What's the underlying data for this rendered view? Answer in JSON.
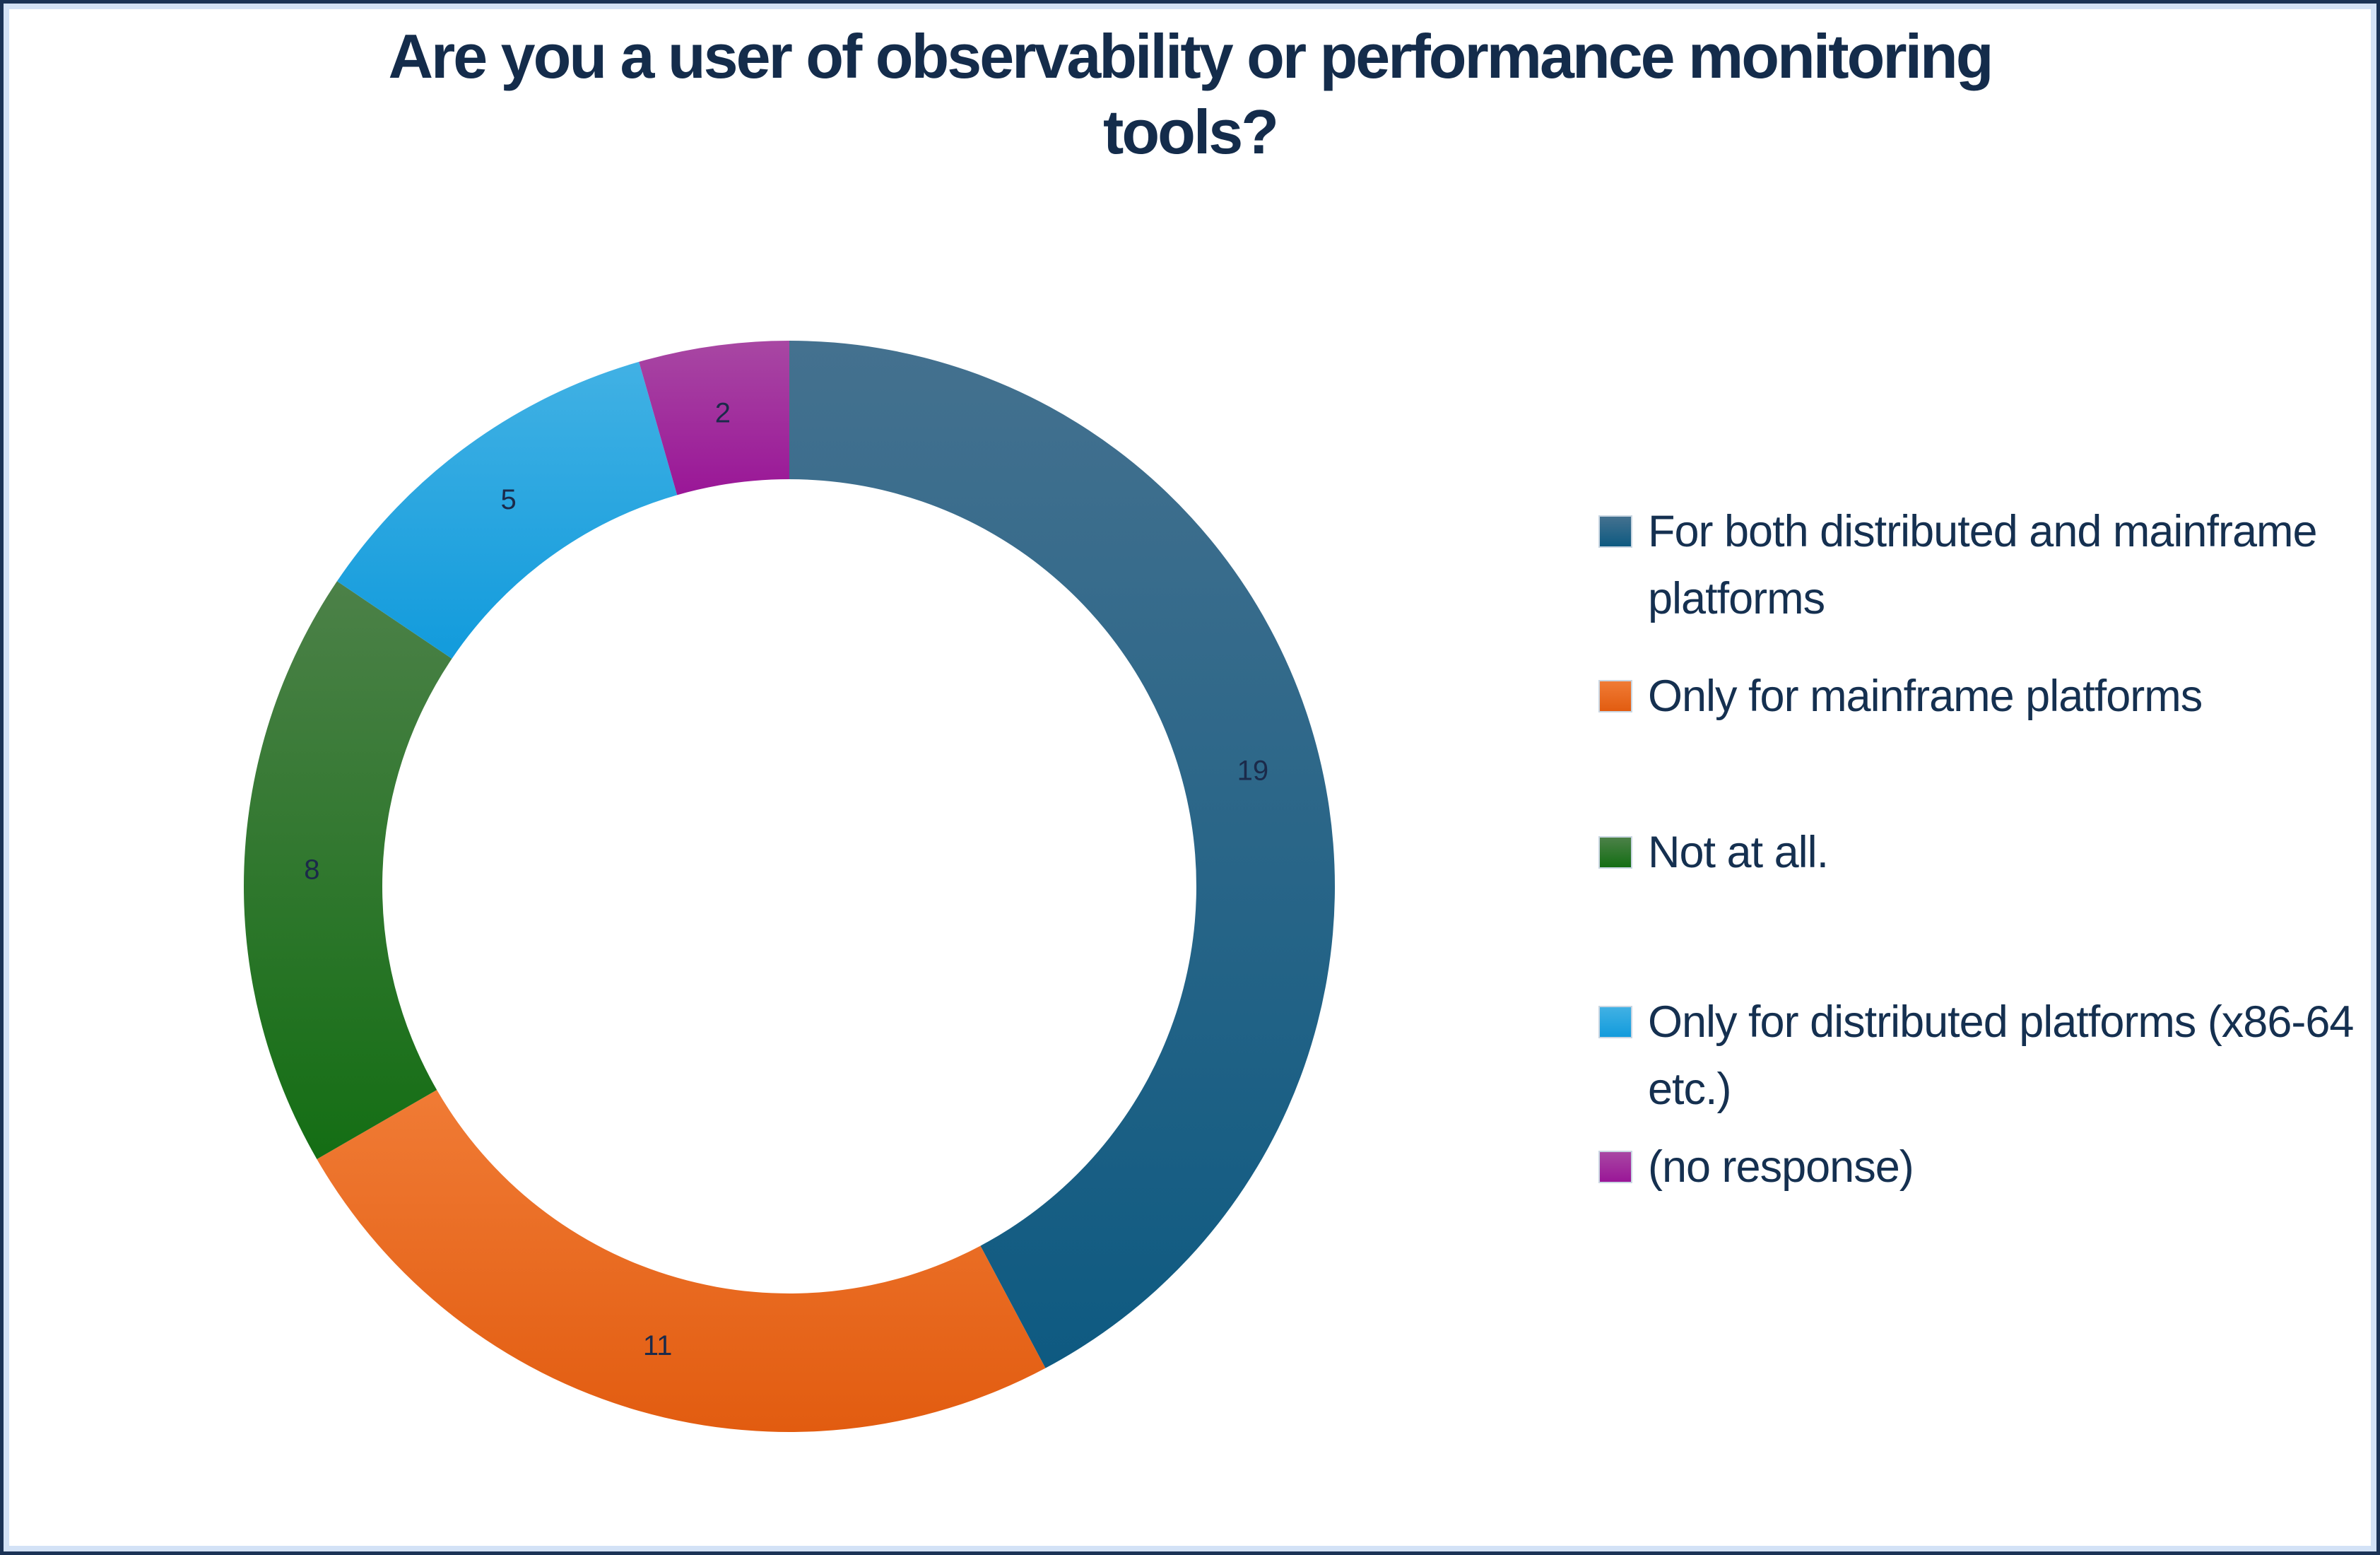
{
  "title": "Are you a user of observability or performance monitoring\ntools?",
  "chart_data": {
    "type": "pie",
    "subtype": "donut",
    "title": "Are you a user of observability or performance monitoring tools?",
    "categories": [
      "For both distributed and mainframe platforms",
      "Only for  mainframe platforms",
      "Not at all.",
      "Only for distributed platforms (x86-64 etc.)",
      "(no response)"
    ],
    "values": [
      19,
      11,
      8,
      5,
      2
    ],
    "total": 45,
    "data_labels": [
      "19",
      "11",
      "8",
      "5",
      "2"
    ],
    "direction": "clockwise",
    "start_angle_deg": 0,
    "inner_radius_ratio": 0.746,
    "legend_position": "right",
    "label_color": "#1B2A4A",
    "colors": [
      {
        "top": "#44718F",
        "bottom": "#0E5A81"
      },
      {
        "top": "#F07B35",
        "bottom": "#E25C10"
      },
      {
        "top": "#4C8148",
        "bottom": "#146E14"
      },
      {
        "top": "#41B1E4",
        "bottom": "#129BDC"
      },
      {
        "top": "#A847A3",
        "bottom": "#9A1697"
      }
    ]
  },
  "frame": {
    "outer_border_color": "#1B3356",
    "inner_border_color": "#D3E2F6",
    "background": "#FFFFFF"
  },
  "text_colors": {
    "title": "#142C4B",
    "legend": "#153050"
  }
}
